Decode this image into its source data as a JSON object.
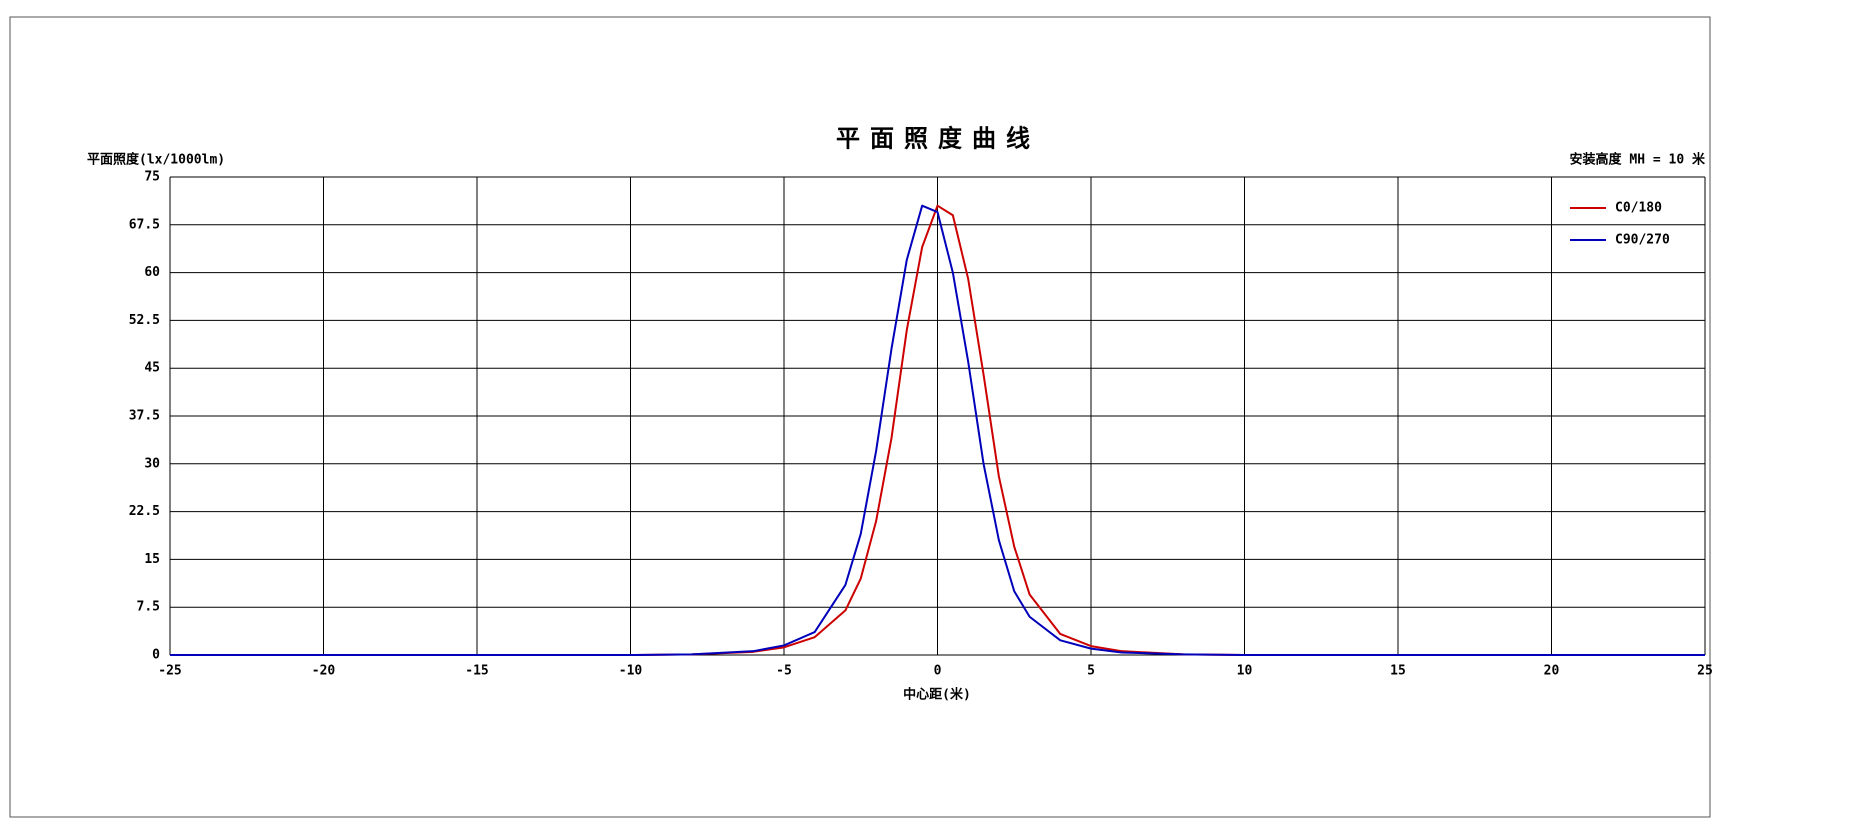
{
  "chart_data": {
    "type": "line",
    "title": "平面照度曲线",
    "y_label": "平面照度(lx/1000lm)",
    "x_label": "中心距(米)",
    "annotation": "安装高度 MH = 10 米",
    "x": [
      -25,
      -20,
      -15,
      -10,
      -8,
      -6,
      -5,
      -4,
      -3,
      -2.5,
      -2,
      -1.5,
      -1,
      -0.5,
      0,
      0.5,
      1,
      1.5,
      2,
      2.5,
      3,
      4,
      5,
      6,
      8,
      10,
      15,
      20,
      25
    ],
    "series": [
      {
        "name": "C0/180",
        "color": "#cc0000",
        "values": [
          0,
          0,
          0,
          0,
          0.1,
          0.5,
          1.2,
          2.8,
          7,
          12,
          21,
          34,
          51,
          64,
          70.5,
          69,
          59,
          44,
          28,
          17,
          9.5,
          3.3,
          1.4,
          0.6,
          0.1,
          0,
          0,
          0,
          0
        ]
      },
      {
        "name": "C90/270",
        "color": "#0000bb",
        "values": [
          0,
          0,
          0,
          0,
          0.1,
          0.6,
          1.5,
          3.6,
          11,
          19,
          32,
          48,
          62,
          70.5,
          69.5,
          60,
          46,
          30,
          18,
          10,
          6,
          2.3,
          1,
          0.4,
          0.1,
          0,
          0,
          0,
          0
        ]
      }
    ],
    "xlim": [
      -25,
      25
    ],
    "xticks": [
      -25,
      -20,
      -15,
      -10,
      -5,
      0,
      5,
      10,
      15,
      20,
      25
    ],
    "ylim": [
      0,
      75
    ],
    "yticks": [
      0,
      7.5,
      15,
      22.5,
      30,
      37.5,
      45,
      52.5,
      60,
      67.5,
      75
    ],
    "grid": true,
    "legend": "upper right"
  }
}
